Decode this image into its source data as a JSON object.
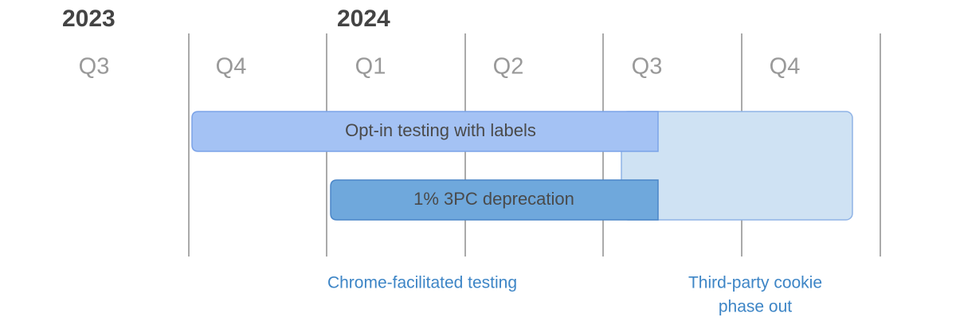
{
  "years": [
    "2023",
    "2024"
  ],
  "quarters": [
    "Q3",
    "Q4",
    "Q1",
    "Q2",
    "Q3",
    "Q4"
  ],
  "bars": [
    {
      "label": "Opt-in testing with labels"
    },
    {
      "label": "1% 3PC deprecation"
    }
  ],
  "phases": [
    {
      "lines": [
        "Chrome-facilitated testing"
      ]
    },
    {
      "lines": [
        "Third-party cookie",
        "phase out"
      ]
    }
  ]
}
